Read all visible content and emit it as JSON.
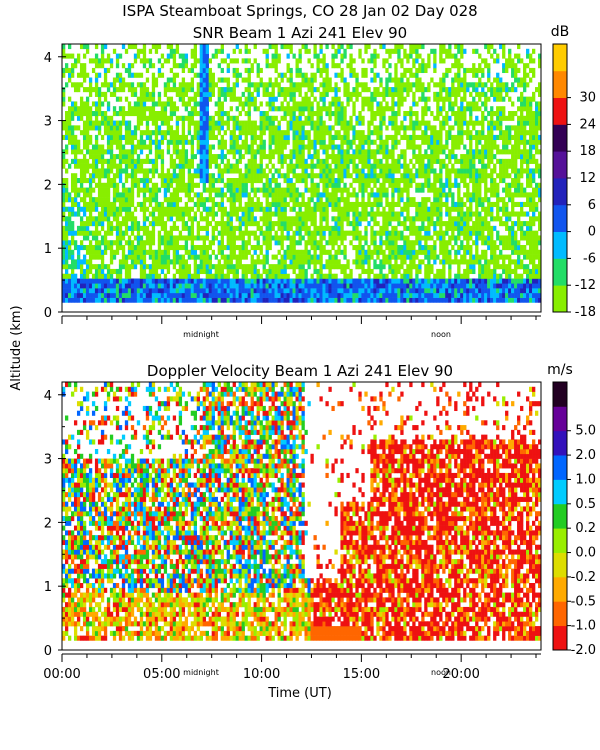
{
  "figure": {
    "title_line1": "ISPA Steamboat Springs, CO  28 Jan 02 Day 028",
    "ylabel": "Altitude (km)",
    "xlabel": "Time (UT)",
    "x_ticks": [
      "00:00",
      "05:00",
      "10:00",
      "15:00",
      "20:00"
    ],
    "local_markers": [
      "midnight",
      "noon"
    ]
  },
  "chart_data": [
    {
      "type": "heatmap",
      "title": "SNR Beam 1 Azi 241 Elev 90",
      "xlabel": "Time (UT)",
      "ylabel": "Altitude (km)",
      "xlim": [
        0,
        24
      ],
      "ylim": [
        0,
        4.2
      ],
      "y_ticks": [
        0,
        1,
        2,
        3,
        4
      ],
      "colorbar": {
        "unit": "dB",
        "range": [
          -18,
          36
        ],
        "ticks": [
          "-18",
          "-12",
          "-6",
          "0",
          "6",
          "12",
          "18",
          "24",
          "30"
        ],
        "colors": [
          "#88ee00",
          "#22dd66",
          "#00bbff",
          "#1155ee",
          "#2222bb",
          "#551199",
          "#330055",
          "#ee1111",
          "#ff8800",
          "#ffcc00"
        ]
      },
      "description": "Weak echoes (-18 to -12 dB) fill most of 0-4 km; stronger returns (0-12 dB) concentrated below 0.5 km; intense narrow column near 07:00 UT."
    },
    {
      "type": "heatmap",
      "title": "Doppler Velocity Beam 1 Azi 241 Elev 90",
      "xlabel": "Time (UT)",
      "ylabel": "Altitude (km)",
      "xlim": [
        0,
        24
      ],
      "ylim": [
        0,
        4.2
      ],
      "y_ticks": [
        0,
        1,
        2,
        3,
        4
      ],
      "colorbar": {
        "unit": "m/s",
        "range": [
          -2.0,
          5.0
        ],
        "ticks": [
          "-2.0",
          "-1.0",
          "-0.5",
          "-0.2",
          "0.0",
          "0.2",
          "0.5",
          "1.0",
          "2.0",
          "5.0"
        ],
        "colors": [
          "#ee1111",
          "#ff6600",
          "#ffaa00",
          "#dddd00",
          "#99ee00",
          "#22cc22",
          "#00ccff",
          "#0066ff",
          "#3311bb",
          "#660099",
          "#220022"
        ]
      },
      "description": "Mostly downward velocities (-2 to -0.5 m/s) after 13:00 UT; mixed upward/downward values (-0.5 to 1.0 m/s) between 00:00 and 12:00 UT."
    }
  ]
}
